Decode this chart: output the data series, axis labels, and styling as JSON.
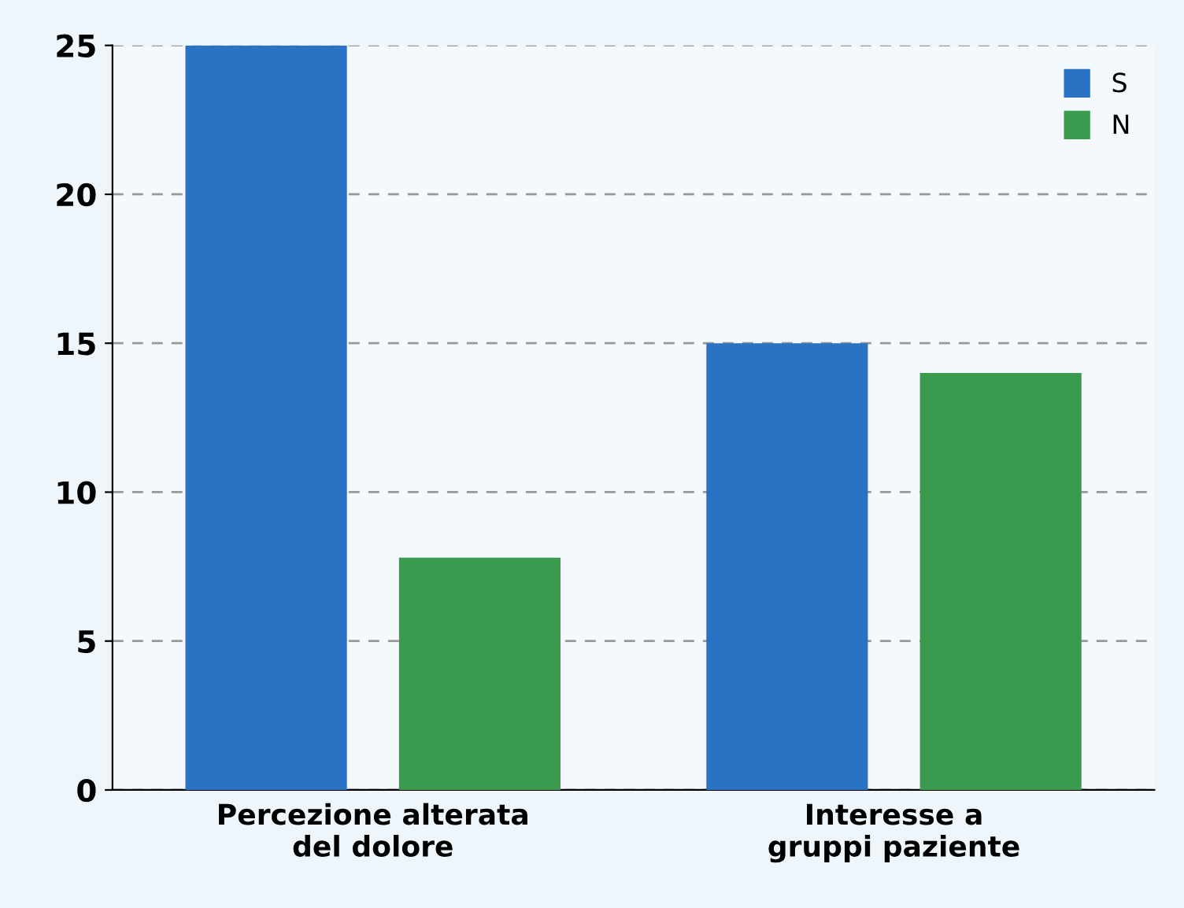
{
  "chart_data": {
    "type": "bar",
    "categories": [
      "Percezione alterata\ndel dolore",
      "Interesse a\ngruppi paziente"
    ],
    "series": [
      {
        "name": "S",
        "color": "#2a72c4",
        "values": [
          25,
          15
        ]
      },
      {
        "name": "N",
        "color": "#3a9a4e",
        "values": [
          7.8,
          14
        ]
      }
    ],
    "ylim": [
      0,
      25
    ],
    "yticks": [
      0,
      5,
      10,
      15,
      20,
      25
    ],
    "grid": "y",
    "legend": "top right"
  }
}
